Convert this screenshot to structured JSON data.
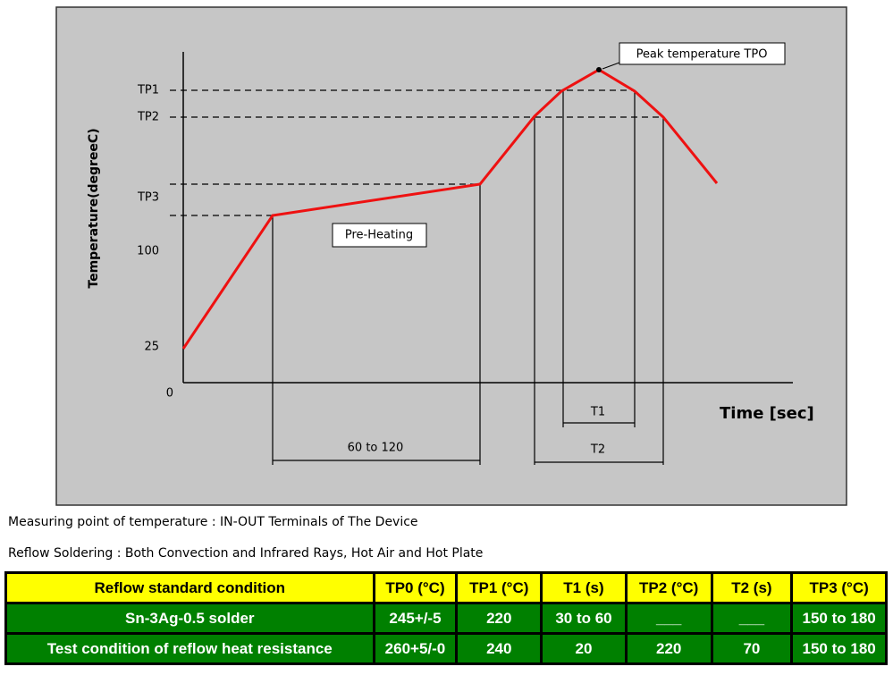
{
  "diagram": {
    "y_axis_label": "Temperature(degreeC)",
    "x_axis_label": "Time [sec]",
    "y_labels": [
      "TP1",
      "TP2",
      "TP3",
      "100",
      "25",
      "0"
    ],
    "peak_label": "Peak temperature TPO",
    "preheat_label": "Pre-Heating",
    "preheat_time": "60 to 120",
    "t1_label": "T1",
    "t2_label": "T2"
  },
  "notes": [
    "Measuring point of temperature : IN-OUT Terminals of The Device",
    "Reflow Soldering : Both Convection and Infrared Rays, Hot Air and Hot Plate"
  ],
  "table": {
    "header": [
      "Reflow standard condition",
      "TP0 (°C)",
      "TP1 (°C)",
      "T1 (s)",
      "TP2 (°C)",
      "T2 (s)",
      "TP3 (°C)"
    ],
    "rows": [
      [
        "Sn-3Ag-0.5 solder",
        "245+/-5",
        "220",
        "30 to 60",
        "___",
        "___",
        "150 to 180"
      ],
      [
        "Test condition of reflow heat resistance",
        "260+5/-0",
        "240",
        "20",
        "220",
        "70",
        "150 to 180"
      ]
    ]
  }
}
